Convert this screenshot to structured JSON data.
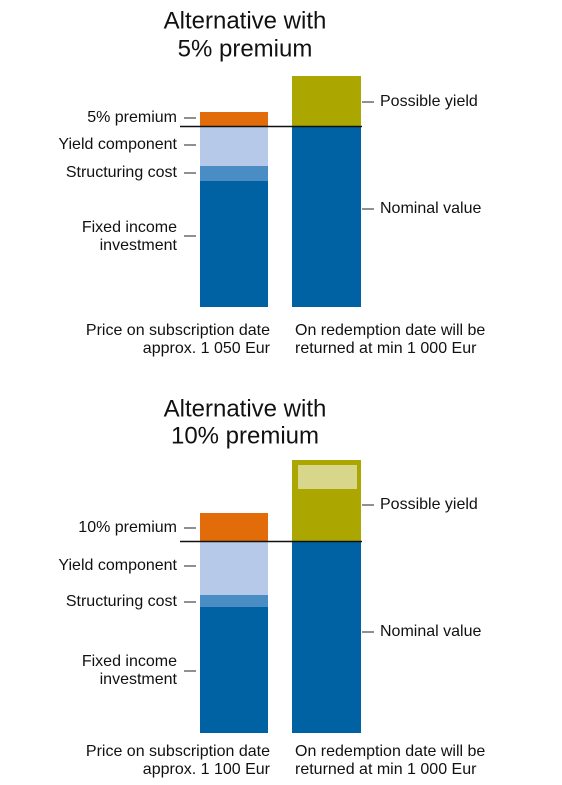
{
  "panels": [
    {
      "title": [
        "Alternative with",
        "5% premium"
      ],
      "left_labels": {
        "premium": "5% premium",
        "yield_component": "Yield component",
        "structuring_cost": "Structuring cost",
        "fixed_income": [
          "Fixed income",
          "investment"
        ]
      },
      "right_labels": {
        "possible_yield": "Possible yield",
        "nominal_value": "Nominal value"
      },
      "left_caption": [
        "Price on subscription date",
        "approx. 1 050 Eur"
      ],
      "right_caption": [
        "On redemption date will be",
        "returned at min 1 000 Eur"
      ]
    },
    {
      "title": [
        "Alternative with",
        "10% premium"
      ],
      "left_labels": {
        "premium": "10% premium",
        "yield_component": "Yield component",
        "structuring_cost": "Structuring cost",
        "fixed_income": [
          "Fixed income",
          "investment"
        ]
      },
      "right_labels": {
        "possible_yield": "Possible yield",
        "nominal_value": "Nominal value"
      },
      "left_caption": [
        "Price on subscription date",
        "approx. 1 100 Eur"
      ],
      "right_caption": [
        "On redemption date will be",
        "returned at min 1 000 Eur"
      ]
    }
  ]
}
